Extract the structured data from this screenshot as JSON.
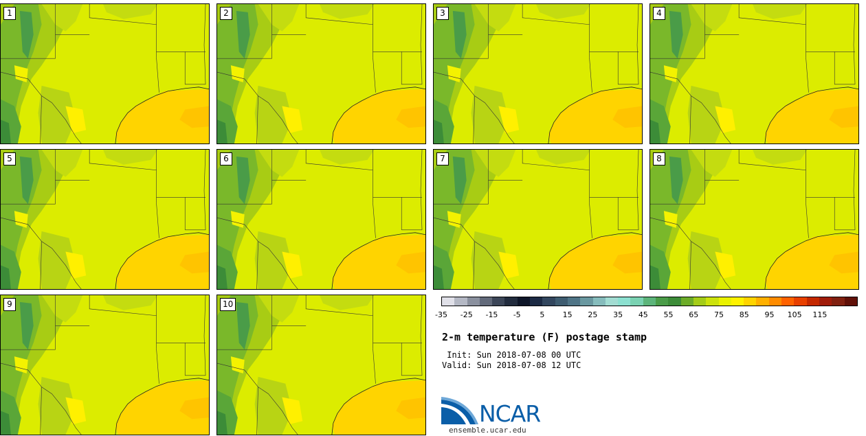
{
  "panels": [
    "1",
    "2",
    "3",
    "4",
    "5",
    "6",
    "7",
    "8",
    "9",
    "10"
  ],
  "colorbar": {
    "labels": [
      "-35",
      "-25",
      "-15",
      "-5",
      "5",
      "15",
      "25",
      "35",
      "45",
      "55",
      "65",
      "75",
      "85",
      "95",
      "105",
      "115"
    ],
    "colors": [
      "#e0e0e8",
      "#b4b8c4",
      "#8a909e",
      "#626a7a",
      "#3c4658",
      "#222c3e",
      "#0e1628",
      "#1c2a44",
      "#32465e",
      "#3e5c70",
      "#4f7486",
      "#6a98a0",
      "#86bcbc",
      "#a2dcd2",
      "#8ce0d0",
      "#7ad2b2",
      "#5cb47a",
      "#4a9c48",
      "#3c8c38",
      "#6cac28",
      "#a4cc18",
      "#cce20c",
      "#eaf200",
      "#fff200",
      "#ffd400",
      "#ffb000",
      "#ff8c00",
      "#ff6200",
      "#e84000",
      "#c42800",
      "#a01c0a",
      "#802010",
      "#601008"
    ]
  },
  "title": "2-m temperature (F) postage stamp",
  "init": " Init: Sun 2018-07-08 00 UTC",
  "valid": "Valid: Sun 2018-07-08 12 UTC",
  "logo_text": "NCAR",
  "site": "ensemble.ucar.edu"
}
